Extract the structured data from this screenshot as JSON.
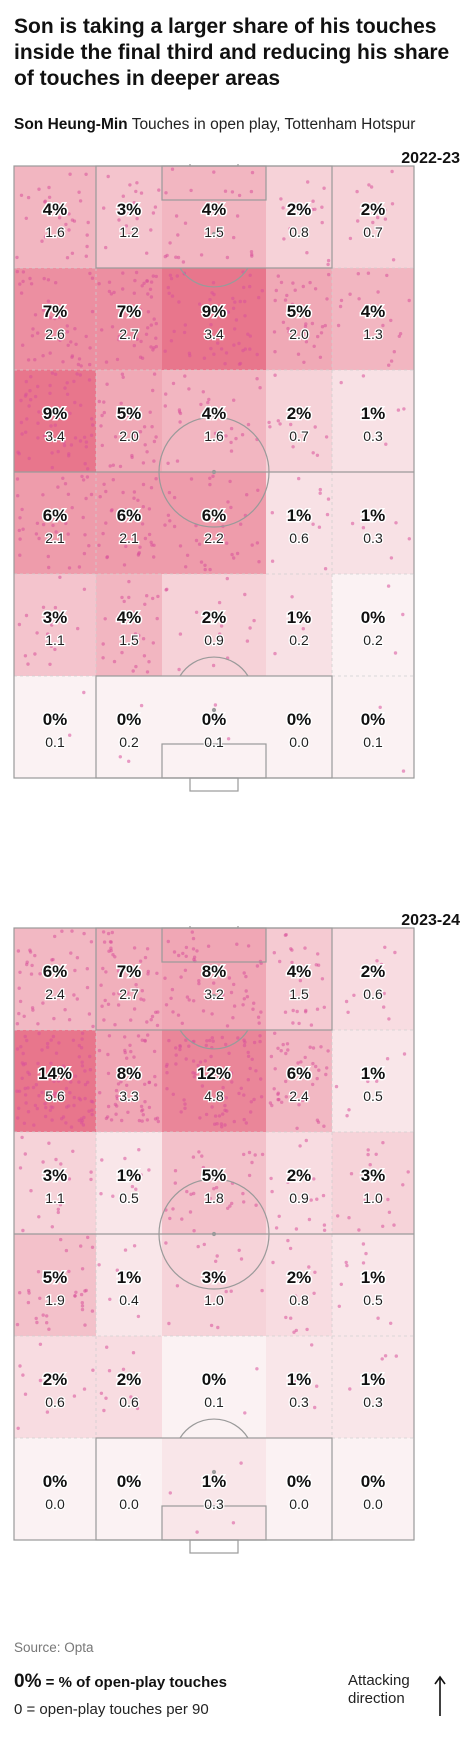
{
  "title": "Son is taking a larger share of his touches inside the final third and reducing his share of touches in deeper areas",
  "subtitle_player": "Son Heung-Min",
  "subtitle_rest": "Touches in open play, Tottenham Hotspur",
  "source": "Source: Opta",
  "legend": {
    "pct_symbol": "0%",
    "pct_text": " = % of open-play touches",
    "per90_text": "0 = open-play touches per 90",
    "attack_line1": "Attacking",
    "attack_line2": "direction"
  },
  "colors": {
    "heat_max": "#e8768c",
    "heat_min": "#fbf2f3",
    "dots": "#d9519a",
    "lines": "#9a9a9a",
    "grid": "#cfcfcf"
  },
  "chart_data": [
    {
      "type": "heatmap",
      "season": "2022-23",
      "rows_top_to_bottom": [
        {
          "pct": [
            "4%",
            "3%",
            "4%",
            "2%",
            "2%"
          ],
          "per90": [
            "1.6",
            "1.2",
            "1.5",
            "0.8",
            "0.7"
          ]
        },
        {
          "pct": [
            "7%",
            "7%",
            "9%",
            "5%",
            "4%"
          ],
          "per90": [
            "2.6",
            "2.7",
            "3.4",
            "2.0",
            "1.3"
          ]
        },
        {
          "pct": [
            "9%",
            "5%",
            "4%",
            "2%",
            "1%"
          ],
          "per90": [
            "3.4",
            "2.0",
            "1.6",
            "0.7",
            "0.3"
          ]
        },
        {
          "pct": [
            "6%",
            "6%",
            "6%",
            "1%",
            "1%"
          ],
          "per90": [
            "2.1",
            "2.1",
            "2.2",
            "0.6",
            "0.3"
          ]
        },
        {
          "pct": [
            "3%",
            "4%",
            "2%",
            "1%",
            "0%"
          ],
          "per90": [
            "1.1",
            "1.5",
            "0.9",
            "0.2",
            "0.2"
          ]
        },
        {
          "pct": [
            "0%",
            "0%",
            "0%",
            "0%",
            "0%"
          ],
          "per90": [
            "0.1",
            "0.2",
            "0.1",
            "0.0",
            "0.1"
          ]
        }
      ]
    },
    {
      "type": "heatmap",
      "season": "2023-24",
      "rows_top_to_bottom": [
        {
          "pct": [
            "6%",
            "7%",
            "8%",
            "4%",
            "2%"
          ],
          "per90": [
            "2.4",
            "2.7",
            "3.2",
            "1.5",
            "0.6"
          ]
        },
        {
          "pct": [
            "14%",
            "8%",
            "12%",
            "6%",
            "1%"
          ],
          "per90": [
            "5.6",
            "3.3",
            "4.8",
            "2.4",
            "0.5"
          ]
        },
        {
          "pct": [
            "3%",
            "1%",
            "5%",
            "2%",
            "3%"
          ],
          "per90": [
            "1.1",
            "0.5",
            "1.8",
            "0.9",
            "1.0"
          ]
        },
        {
          "pct": [
            "5%",
            "1%",
            "3%",
            "2%",
            "1%"
          ],
          "per90": [
            "1.9",
            "0.4",
            "1.0",
            "0.8",
            "0.5"
          ]
        },
        {
          "pct": [
            "2%",
            "2%",
            "0%",
            "1%",
            "1%"
          ],
          "per90": [
            "0.6",
            "0.6",
            "0.1",
            "0.3",
            "0.3"
          ]
        },
        {
          "pct": [
            "0%",
            "0%",
            "1%",
            "0%",
            "0%"
          ],
          "per90": [
            "0.0",
            "0.0",
            "0.3",
            "0.0",
            "0.0"
          ]
        }
      ]
    }
  ]
}
